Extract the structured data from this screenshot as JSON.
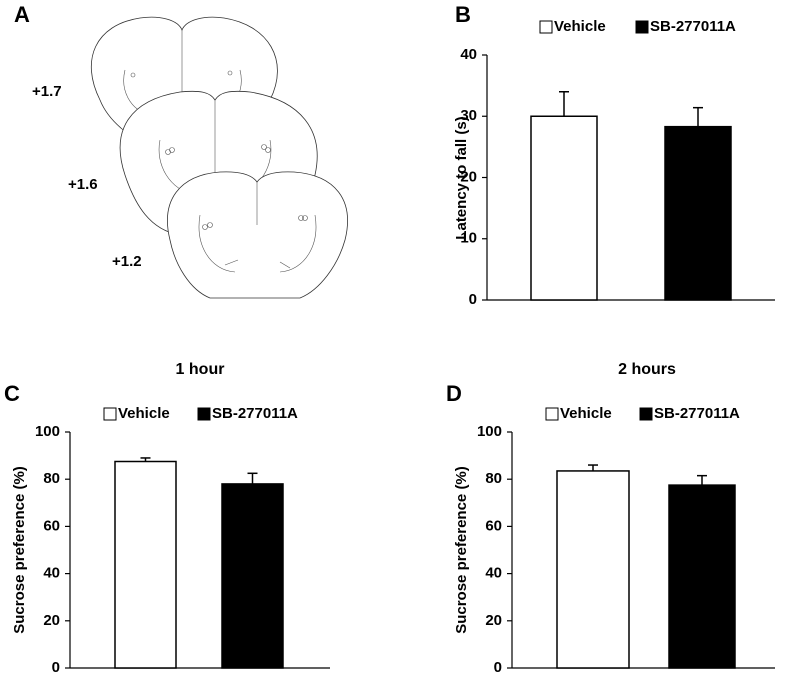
{
  "panel_a": {
    "letter": "A",
    "levels": [
      "+1.7",
      "+1.6",
      "+1.2"
    ]
  },
  "chart_data": [
    {
      "type": "bar",
      "panel_label": "B",
      "ylabel": "Latency to fall (s)",
      "ylim": [
        0,
        40
      ],
      "yticks": [
        0,
        10,
        20,
        30,
        40
      ],
      "series": [
        {
          "name": "Vehicle",
          "color": "#ffffff",
          "values": [
            30
          ],
          "errors": [
            4
          ]
        },
        {
          "name": "SB-277011A",
          "color": "#000000",
          "values": [
            28.3
          ],
          "errors": [
            3.1
          ]
        }
      ]
    },
    {
      "type": "bar",
      "panel_label": "C",
      "title": "1 hour",
      "ylabel": "Sucrose preference (%)",
      "ylim": [
        0,
        100
      ],
      "yticks": [
        0,
        20,
        40,
        60,
        80,
        100
      ],
      "series": [
        {
          "name": "Vehicle",
          "color": "#ffffff",
          "values": [
            87.5
          ],
          "errors": [
            1.5
          ]
        },
        {
          "name": "SB-277011A",
          "color": "#000000",
          "values": [
            78
          ],
          "errors": [
            4.5
          ]
        }
      ]
    },
    {
      "type": "bar",
      "panel_label": "D",
      "title": "2 hours",
      "ylabel": "Sucrose preference (%)",
      "ylim": [
        0,
        100
      ],
      "yticks": [
        0,
        20,
        40,
        60,
        80,
        100
      ],
      "series": [
        {
          "name": "Vehicle",
          "color": "#ffffff",
          "values": [
            83.5
          ],
          "errors": [
            2.5
          ]
        },
        {
          "name": "SB-277011A",
          "color": "#000000",
          "values": [
            77.5
          ],
          "errors": [
            4
          ]
        }
      ]
    }
  ]
}
